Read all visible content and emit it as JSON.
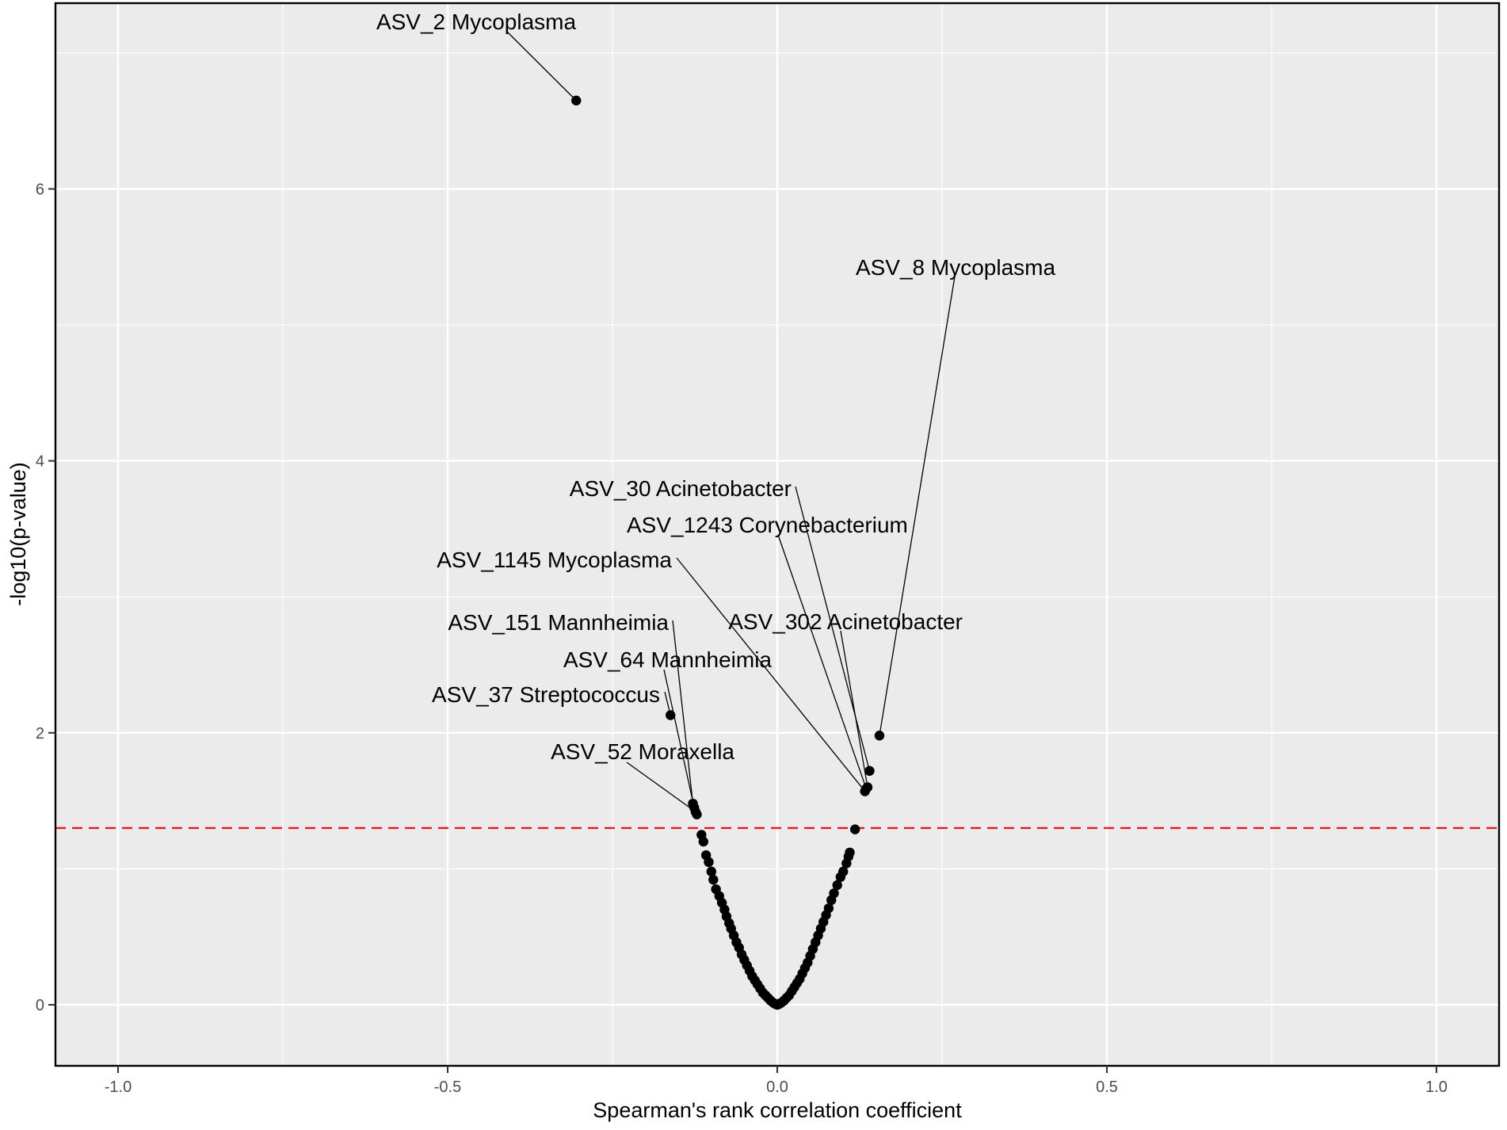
{
  "chart_data": {
    "type": "scatter",
    "xlabel": "Spearman's rank correlation coefficient",
    "ylabel": "-log10(p-value)",
    "xlim": [
      -1.1,
      1.1
    ],
    "ylim": [
      -0.45,
      7.3
    ],
    "x_ticks": [
      -1.0,
      -0.5,
      0.0,
      0.5,
      1.0
    ],
    "x_tick_labels": [
      "-1.0",
      "-0.5",
      "0.0",
      "0.5",
      "1.0"
    ],
    "y_ticks": [
      0,
      2,
      4,
      6
    ],
    "y_tick_labels": [
      "0",
      "2",
      "4",
      "6"
    ],
    "grid": true,
    "threshold_line": {
      "y": 1.3,
      "style": "dashed",
      "color": "#e41a1c"
    },
    "point_color": "#000000",
    "labeled_points": [
      {
        "label": "ASV_2 Mycoplasma",
        "x": -0.305,
        "y": 6.65
      },
      {
        "label": "ASV_8 Mycoplasma",
        "x": 0.155,
        "y": 1.98
      },
      {
        "label": "ASV_30 Acinetobacter",
        "x": 0.14,
        "y": 1.72
      },
      {
        "label": "ASV_1243 Corynebacterium",
        "x": 0.135,
        "y": 1.59
      },
      {
        "label": "ASV_1145 Mycoplasma",
        "x": 0.133,
        "y": 1.57
      },
      {
        "label": "ASV_302 Acinetobacter",
        "x": 0.137,
        "y": 1.6
      },
      {
        "label": "ASV_151 Mannheimia",
        "x": -0.128,
        "y": 1.48
      },
      {
        "label": "ASV_64 Mannheimia",
        "x": -0.126,
        "y": 1.45
      },
      {
        "label": "ASV_37 Streptococcus",
        "x": -0.162,
        "y": 2.13
      },
      {
        "label": "ASV_52 Moraxella",
        "x": -0.124,
        "y": 1.42
      }
    ],
    "points": [
      [
        -0.122,
        1.4
      ],
      [
        -0.115,
        1.25
      ],
      [
        -0.112,
        1.2
      ],
      [
        -0.108,
        1.1
      ],
      [
        -0.104,
        1.05
      ],
      [
        -0.1,
        0.98
      ],
      [
        -0.097,
        0.92
      ],
      [
        -0.093,
        0.85
      ],
      [
        -0.088,
        0.8
      ],
      [
        -0.084,
        0.75
      ],
      [
        -0.08,
        0.7
      ],
      [
        -0.077,
        0.65
      ],
      [
        -0.073,
        0.6
      ],
      [
        -0.07,
        0.56
      ],
      [
        -0.066,
        0.51
      ],
      [
        -0.062,
        0.46
      ],
      [
        -0.058,
        0.42
      ],
      [
        -0.054,
        0.37
      ],
      [
        -0.05,
        0.33
      ],
      [
        -0.046,
        0.29
      ],
      [
        -0.042,
        0.25
      ],
      [
        -0.038,
        0.21
      ],
      [
        -0.034,
        0.18
      ],
      [
        -0.03,
        0.15
      ],
      [
        -0.026,
        0.12
      ],
      [
        -0.022,
        0.09
      ],
      [
        -0.018,
        0.07
      ],
      [
        -0.014,
        0.05
      ],
      [
        -0.01,
        0.03
      ],
      [
        -0.006,
        0.015
      ],
      [
        -0.003,
        0.006
      ],
      [
        0.0,
        0.0
      ],
      [
        0.003,
        0.006
      ],
      [
        0.006,
        0.015
      ],
      [
        0.01,
        0.03
      ],
      [
        0.014,
        0.05
      ],
      [
        0.018,
        0.07
      ],
      [
        0.022,
        0.1
      ],
      [
        0.026,
        0.13
      ],
      [
        0.03,
        0.16
      ],
      [
        0.034,
        0.19
      ],
      [
        0.038,
        0.23
      ],
      [
        0.042,
        0.27
      ],
      [
        0.046,
        0.31
      ],
      [
        0.05,
        0.36
      ],
      [
        0.054,
        0.41
      ],
      [
        0.058,
        0.46
      ],
      [
        0.062,
        0.51
      ],
      [
        0.066,
        0.56
      ],
      [
        0.07,
        0.61
      ],
      [
        0.074,
        0.66
      ],
      [
        0.078,
        0.71
      ],
      [
        0.082,
        0.77
      ],
      [
        0.086,
        0.82
      ],
      [
        0.091,
        0.88
      ],
      [
        0.096,
        0.94
      ],
      [
        0.1,
        0.98
      ],
      [
        0.105,
        1.04
      ],
      [
        0.108,
        1.09
      ],
      [
        0.11,
        1.12
      ],
      [
        0.118,
        1.29
      ]
    ]
  }
}
